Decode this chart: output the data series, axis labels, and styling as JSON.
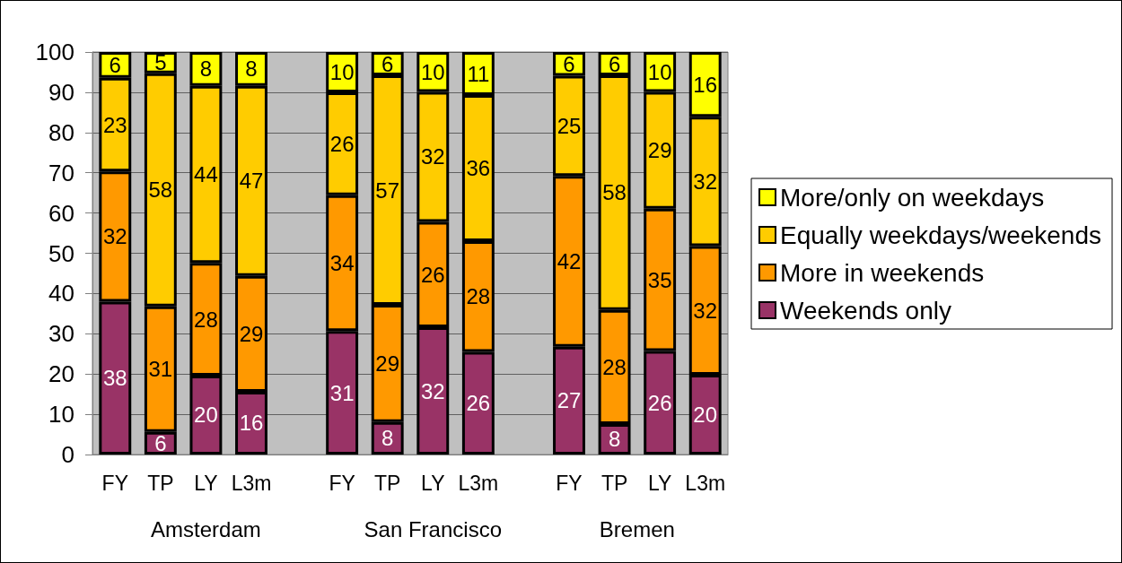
{
  "chart_data": {
    "type": "bar",
    "stacked": true,
    "categories": [
      "FY",
      "TP",
      "LY",
      "L3m",
      null,
      "FY",
      "TP",
      "LY",
      "L3m",
      null,
      "FY",
      "TP",
      "LY",
      "L3m"
    ],
    "series": [
      {
        "name": "Weekends only",
        "color": "#993366",
        "values": [
          38.0,
          5.6,
          19.6,
          15.6,
          null,
          30.7,
          8.1,
          31.6,
          25.5,
          null,
          26.8,
          7.6,
          25.7,
          19.8
        ],
        "value_labels": [
          "38",
          "6",
          "20",
          "16",
          null,
          "31",
          "8",
          "32",
          "26",
          null,
          "27",
          "8",
          "26",
          "20"
        ]
      },
      {
        "name": "More in weekends",
        "color": "#ff9900",
        "values": [
          32.3,
          31.2,
          28.0,
          28.8,
          null,
          33.7,
          29.1,
          26.2,
          27.5,
          null,
          42.4,
          28.3,
          35.4,
          32.0
        ],
        "value_labels": [
          "32",
          "31",
          "28",
          "29",
          null,
          "34",
          "29",
          "26",
          "28",
          null,
          "42",
          "28",
          "35",
          "32"
        ]
      },
      {
        "name": "Equally weekdays/weekends",
        "color": "#ffcc00",
        "values": [
          23.3,
          57.9,
          44.0,
          47.2,
          null,
          25.6,
          57.0,
          32.3,
          36.3,
          null,
          24.9,
          58.3,
          29.0,
          32.1
        ],
        "value_labels": [
          "23",
          "58",
          "44",
          "47",
          null,
          "26",
          "57",
          "32",
          "36",
          null,
          "25",
          "58",
          "29",
          "32"
        ]
      },
      {
        "name": "More/only on weekdays",
        "color": "#ffff00",
        "values": [
          6.4,
          5.3,
          8.4,
          8.4,
          null,
          10.0,
          5.8,
          9.9,
          10.7,
          null,
          5.9,
          5.8,
          9.9,
          16.1
        ],
        "value_labels": [
          "6",
          "5",
          "8",
          "8",
          null,
          "10",
          "6",
          "10",
          "11",
          null,
          "6",
          "6",
          "10",
          "16"
        ]
      }
    ],
    "ylim": [
      0,
      100
    ],
    "yticks": [
      0,
      10,
      20,
      30,
      40,
      50,
      60,
      70,
      80,
      90,
      100
    ],
    "grid": "y",
    "legend": "right",
    "annotations": [
      "Amsterdam",
      "San Francisco",
      "Bremen"
    ]
  }
}
